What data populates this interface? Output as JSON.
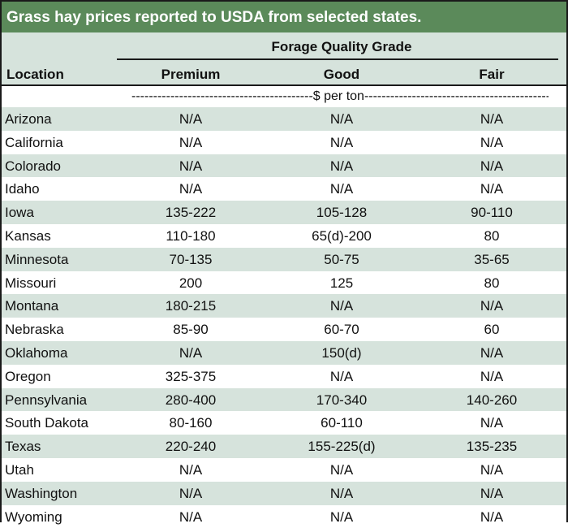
{
  "title": "Grass hay prices reported to USDA from selected states.",
  "header": {
    "group_label": "Forage Quality Grade",
    "location_label": "Location",
    "premium_label": "Premium",
    "good_label": "Good",
    "fair_label": "Fair"
  },
  "units": "------------------------------------------$ per ton-------------------------------------------",
  "rows": [
    {
      "location": "Arizona",
      "premium": "N/A",
      "good": "N/A",
      "fair": "N/A"
    },
    {
      "location": "California",
      "premium": "N/A",
      "good": "N/A",
      "fair": "N/A"
    },
    {
      "location": "Colorado",
      "premium": "N/A",
      "good": "N/A",
      "fair": "N/A"
    },
    {
      "location": "Idaho",
      "premium": "N/A",
      "good": "N/A",
      "fair": "N/A"
    },
    {
      "location": "Iowa",
      "premium": "135-222",
      "good": "105-128",
      "fair": "90-110"
    },
    {
      "location": "Kansas",
      "premium": "110-180",
      "good": "65(d)-200",
      "fair": "80"
    },
    {
      "location": "Minnesota",
      "premium": "70-135",
      "good": "50-75",
      "fair": "35-65"
    },
    {
      "location": "Missouri",
      "premium": "200",
      "good": "125",
      "fair": "80"
    },
    {
      "location": "Montana",
      "premium": "180-215",
      "good": "N/A",
      "fair": "N/A"
    },
    {
      "location": "Nebraska",
      "premium": "85-90",
      "good": "60-70",
      "fair": "60"
    },
    {
      "location": "Oklahoma",
      "premium": "N/A",
      "good": "150(d)",
      "fair": "N/A"
    },
    {
      "location": "Oregon",
      "premium": "325-375",
      "good": "N/A",
      "fair": "N/A"
    },
    {
      "location": "Pennsylvania",
      "premium": "280-400",
      "good": "170-340",
      "fair": "140-260"
    },
    {
      "location": "South Dakota",
      "premium": "80-160",
      "good": "60-110",
      "fair": "N/A"
    },
    {
      "location": "Texas",
      "premium": "220-240",
      "good": "155-225(d)",
      "fair": "135-235"
    },
    {
      "location": "Utah",
      "premium": "N/A",
      "good": "N/A",
      "fair": "N/A"
    },
    {
      "location": "Washington",
      "premium": "N/A",
      "good": "N/A",
      "fair": "N/A"
    },
    {
      "location": "Wyoming",
      "premium": "N/A",
      "good": "N/A",
      "fair": "N/A"
    }
  ]
}
